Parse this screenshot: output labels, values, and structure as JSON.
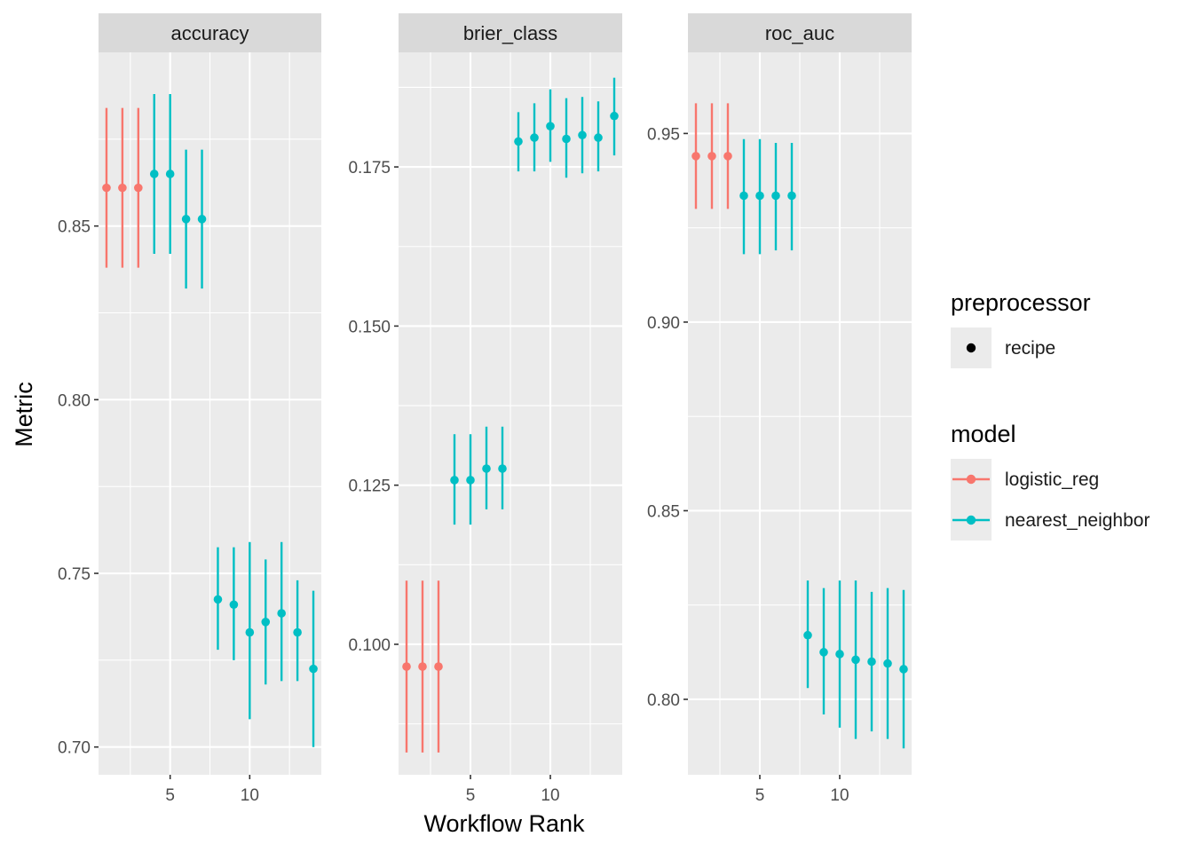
{
  "chart_data": {
    "type": "scatter",
    "subtype": "point-range faceted",
    "xlabel": "Workflow Rank",
    "ylabel": "Metric",
    "x_ticks": [
      5,
      10
    ],
    "x_range": [
      0.5,
      14.5
    ],
    "grid": true,
    "legend_position": "right",
    "panels": [
      {
        "name": "accuracy",
        "ylim": [
          0.692,
          0.9
        ],
        "y_ticks": [
          0.7,
          0.75,
          0.8,
          0.85
        ],
        "y_tick_labels": [
          "0.70",
          "0.75",
          "0.80",
          "0.85"
        ],
        "points": [
          {
            "x": 1,
            "y": 0.861,
            "lo": 0.838,
            "hi": 0.884,
            "model": "logistic_reg"
          },
          {
            "x": 2,
            "y": 0.861,
            "lo": 0.838,
            "hi": 0.884,
            "model": "logistic_reg"
          },
          {
            "x": 3,
            "y": 0.861,
            "lo": 0.838,
            "hi": 0.884,
            "model": "logistic_reg"
          },
          {
            "x": 4,
            "y": 0.865,
            "lo": 0.842,
            "hi": 0.888,
            "model": "nearest_neighbor"
          },
          {
            "x": 5,
            "y": 0.865,
            "lo": 0.842,
            "hi": 0.888,
            "model": "nearest_neighbor"
          },
          {
            "x": 6,
            "y": 0.852,
            "lo": 0.832,
            "hi": 0.872,
            "model": "nearest_neighbor"
          },
          {
            "x": 7,
            "y": 0.852,
            "lo": 0.832,
            "hi": 0.872,
            "model": "nearest_neighbor"
          },
          {
            "x": 8,
            "y": 0.7425,
            "lo": 0.728,
            "hi": 0.7575,
            "model": "nearest_neighbor"
          },
          {
            "x": 9,
            "y": 0.741,
            "lo": 0.725,
            "hi": 0.7575,
            "model": "nearest_neighbor"
          },
          {
            "x": 10,
            "y": 0.733,
            "lo": 0.708,
            "hi": 0.759,
            "model": "nearest_neighbor"
          },
          {
            "x": 11,
            "y": 0.736,
            "lo": 0.718,
            "hi": 0.754,
            "model": "nearest_neighbor"
          },
          {
            "x": 12,
            "y": 0.7385,
            "lo": 0.719,
            "hi": 0.759,
            "model": "nearest_neighbor"
          },
          {
            "x": 13,
            "y": 0.733,
            "lo": 0.719,
            "hi": 0.748,
            "model": "nearest_neighbor"
          },
          {
            "x": 14,
            "y": 0.7225,
            "lo": 0.7,
            "hi": 0.745,
            "model": "nearest_neighbor"
          }
        ]
      },
      {
        "name": "brier_class",
        "ylim": [
          0.0795,
          0.193
        ],
        "y_ticks": [
          0.1,
          0.125,
          0.15,
          0.175
        ],
        "y_tick_labels": [
          "0.100",
          "0.125",
          "0.150",
          "0.175"
        ],
        "points": [
          {
            "x": 1,
            "y": 0.0965,
            "lo": 0.083,
            "hi": 0.11,
            "model": "logistic_reg"
          },
          {
            "x": 2,
            "y": 0.0965,
            "lo": 0.083,
            "hi": 0.11,
            "model": "logistic_reg"
          },
          {
            "x": 3,
            "y": 0.0965,
            "lo": 0.083,
            "hi": 0.11,
            "model": "logistic_reg"
          },
          {
            "x": 4,
            "y": 0.1258,
            "lo": 0.1188,
            "hi": 0.133,
            "model": "nearest_neighbor"
          },
          {
            "x": 5,
            "y": 0.1258,
            "lo": 0.1188,
            "hi": 0.133,
            "model": "nearest_neighbor"
          },
          {
            "x": 6,
            "y": 0.1276,
            "lo": 0.1212,
            "hi": 0.1342,
            "model": "nearest_neighbor"
          },
          {
            "x": 7,
            "y": 0.1276,
            "lo": 0.1212,
            "hi": 0.1342,
            "model": "nearest_neighbor"
          },
          {
            "x": 8,
            "y": 0.179,
            "lo": 0.1743,
            "hi": 0.1836,
            "model": "nearest_neighbor"
          },
          {
            "x": 9,
            "y": 0.1796,
            "lo": 0.1743,
            "hi": 0.185,
            "model": "nearest_neighbor"
          },
          {
            "x": 10,
            "y": 0.1814,
            "lo": 0.1758,
            "hi": 0.1872,
            "model": "nearest_neighbor"
          },
          {
            "x": 11,
            "y": 0.1794,
            "lo": 0.1733,
            "hi": 0.1858,
            "model": "nearest_neighbor"
          },
          {
            "x": 12,
            "y": 0.18,
            "lo": 0.174,
            "hi": 0.186,
            "model": "nearest_neighbor"
          },
          {
            "x": 13,
            "y": 0.1796,
            "lo": 0.1743,
            "hi": 0.1853,
            "model": "nearest_neighbor"
          },
          {
            "x": 14,
            "y": 0.183,
            "lo": 0.1768,
            "hi": 0.189,
            "model": "nearest_neighbor"
          }
        ]
      },
      {
        "name": "roc_auc",
        "ylim": [
          0.78,
          0.9715
        ],
        "y_ticks": [
          0.8,
          0.85,
          0.9,
          0.95
        ],
        "y_tick_labels": [
          "0.80",
          "0.85",
          "0.90",
          "0.95"
        ],
        "points": [
          {
            "x": 1,
            "y": 0.944,
            "lo": 0.93,
            "hi": 0.958,
            "model": "logistic_reg"
          },
          {
            "x": 2,
            "y": 0.944,
            "lo": 0.93,
            "hi": 0.958,
            "model": "logistic_reg"
          },
          {
            "x": 3,
            "y": 0.944,
            "lo": 0.93,
            "hi": 0.958,
            "model": "logistic_reg"
          },
          {
            "x": 4,
            "y": 0.9335,
            "lo": 0.918,
            "hi": 0.9485,
            "model": "nearest_neighbor"
          },
          {
            "x": 5,
            "y": 0.9335,
            "lo": 0.918,
            "hi": 0.9485,
            "model": "nearest_neighbor"
          },
          {
            "x": 6,
            "y": 0.9335,
            "lo": 0.919,
            "hi": 0.9475,
            "model": "nearest_neighbor"
          },
          {
            "x": 7,
            "y": 0.9335,
            "lo": 0.919,
            "hi": 0.9475,
            "model": "nearest_neighbor"
          },
          {
            "x": 8,
            "y": 0.817,
            "lo": 0.803,
            "hi": 0.8315,
            "model": "nearest_neighbor"
          },
          {
            "x": 9,
            "y": 0.8125,
            "lo": 0.796,
            "hi": 0.8295,
            "model": "nearest_neighbor"
          },
          {
            "x": 10,
            "y": 0.812,
            "lo": 0.7925,
            "hi": 0.8315,
            "model": "nearest_neighbor"
          },
          {
            "x": 11,
            "y": 0.8105,
            "lo": 0.7895,
            "hi": 0.8315,
            "model": "nearest_neighbor"
          },
          {
            "x": 12,
            "y": 0.81,
            "lo": 0.7915,
            "hi": 0.8285,
            "model": "nearest_neighbor"
          },
          {
            "x": 13,
            "y": 0.8095,
            "lo": 0.7895,
            "hi": 0.8295,
            "model": "nearest_neighbor"
          },
          {
            "x": 14,
            "y": 0.808,
            "lo": 0.787,
            "hi": 0.829,
            "model": "nearest_neighbor"
          }
        ]
      }
    ],
    "legend": {
      "preprocessor": {
        "title": "preprocessor",
        "items": [
          {
            "label": "recipe",
            "color": "#000000"
          }
        ]
      },
      "model": {
        "title": "model",
        "items": [
          {
            "label": "logistic_reg",
            "color": "#F8766D"
          },
          {
            "label": "nearest_neighbor",
            "color": "#00BFC4"
          }
        ]
      }
    }
  }
}
